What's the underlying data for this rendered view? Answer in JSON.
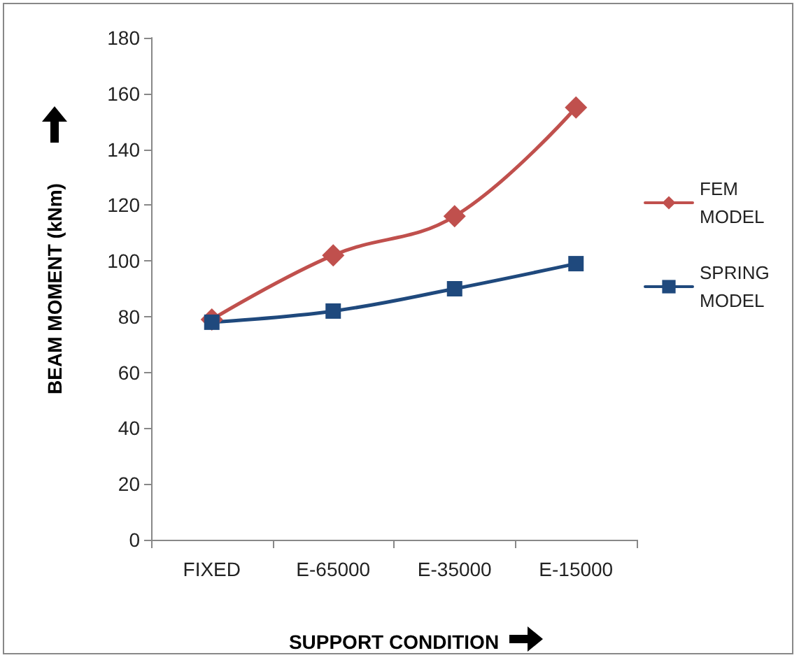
{
  "chart_data": {
    "type": "line",
    "xlabel": "SUPPORT CONDITION",
    "ylabel": "BEAM MOMENT (kNm)",
    "categories": [
      "FIXED",
      "E-65000",
      "E-35000",
      "E-15000"
    ],
    "series": [
      {
        "name": "FEM MODEL",
        "color": "#c0504d",
        "marker": "diamond",
        "values": [
          79,
          102,
          116,
          155
        ]
      },
      {
        "name": "SPRING MODEL",
        "color": "#1f497d",
        "marker": "square",
        "values": [
          78,
          82,
          90,
          99
        ]
      }
    ],
    "ylim": [
      0,
      180
    ],
    "yticks": [
      0,
      20,
      40,
      60,
      80,
      100,
      120,
      140,
      160,
      180
    ],
    "grid": false,
    "legend": "right",
    "line_style": "solid"
  }
}
